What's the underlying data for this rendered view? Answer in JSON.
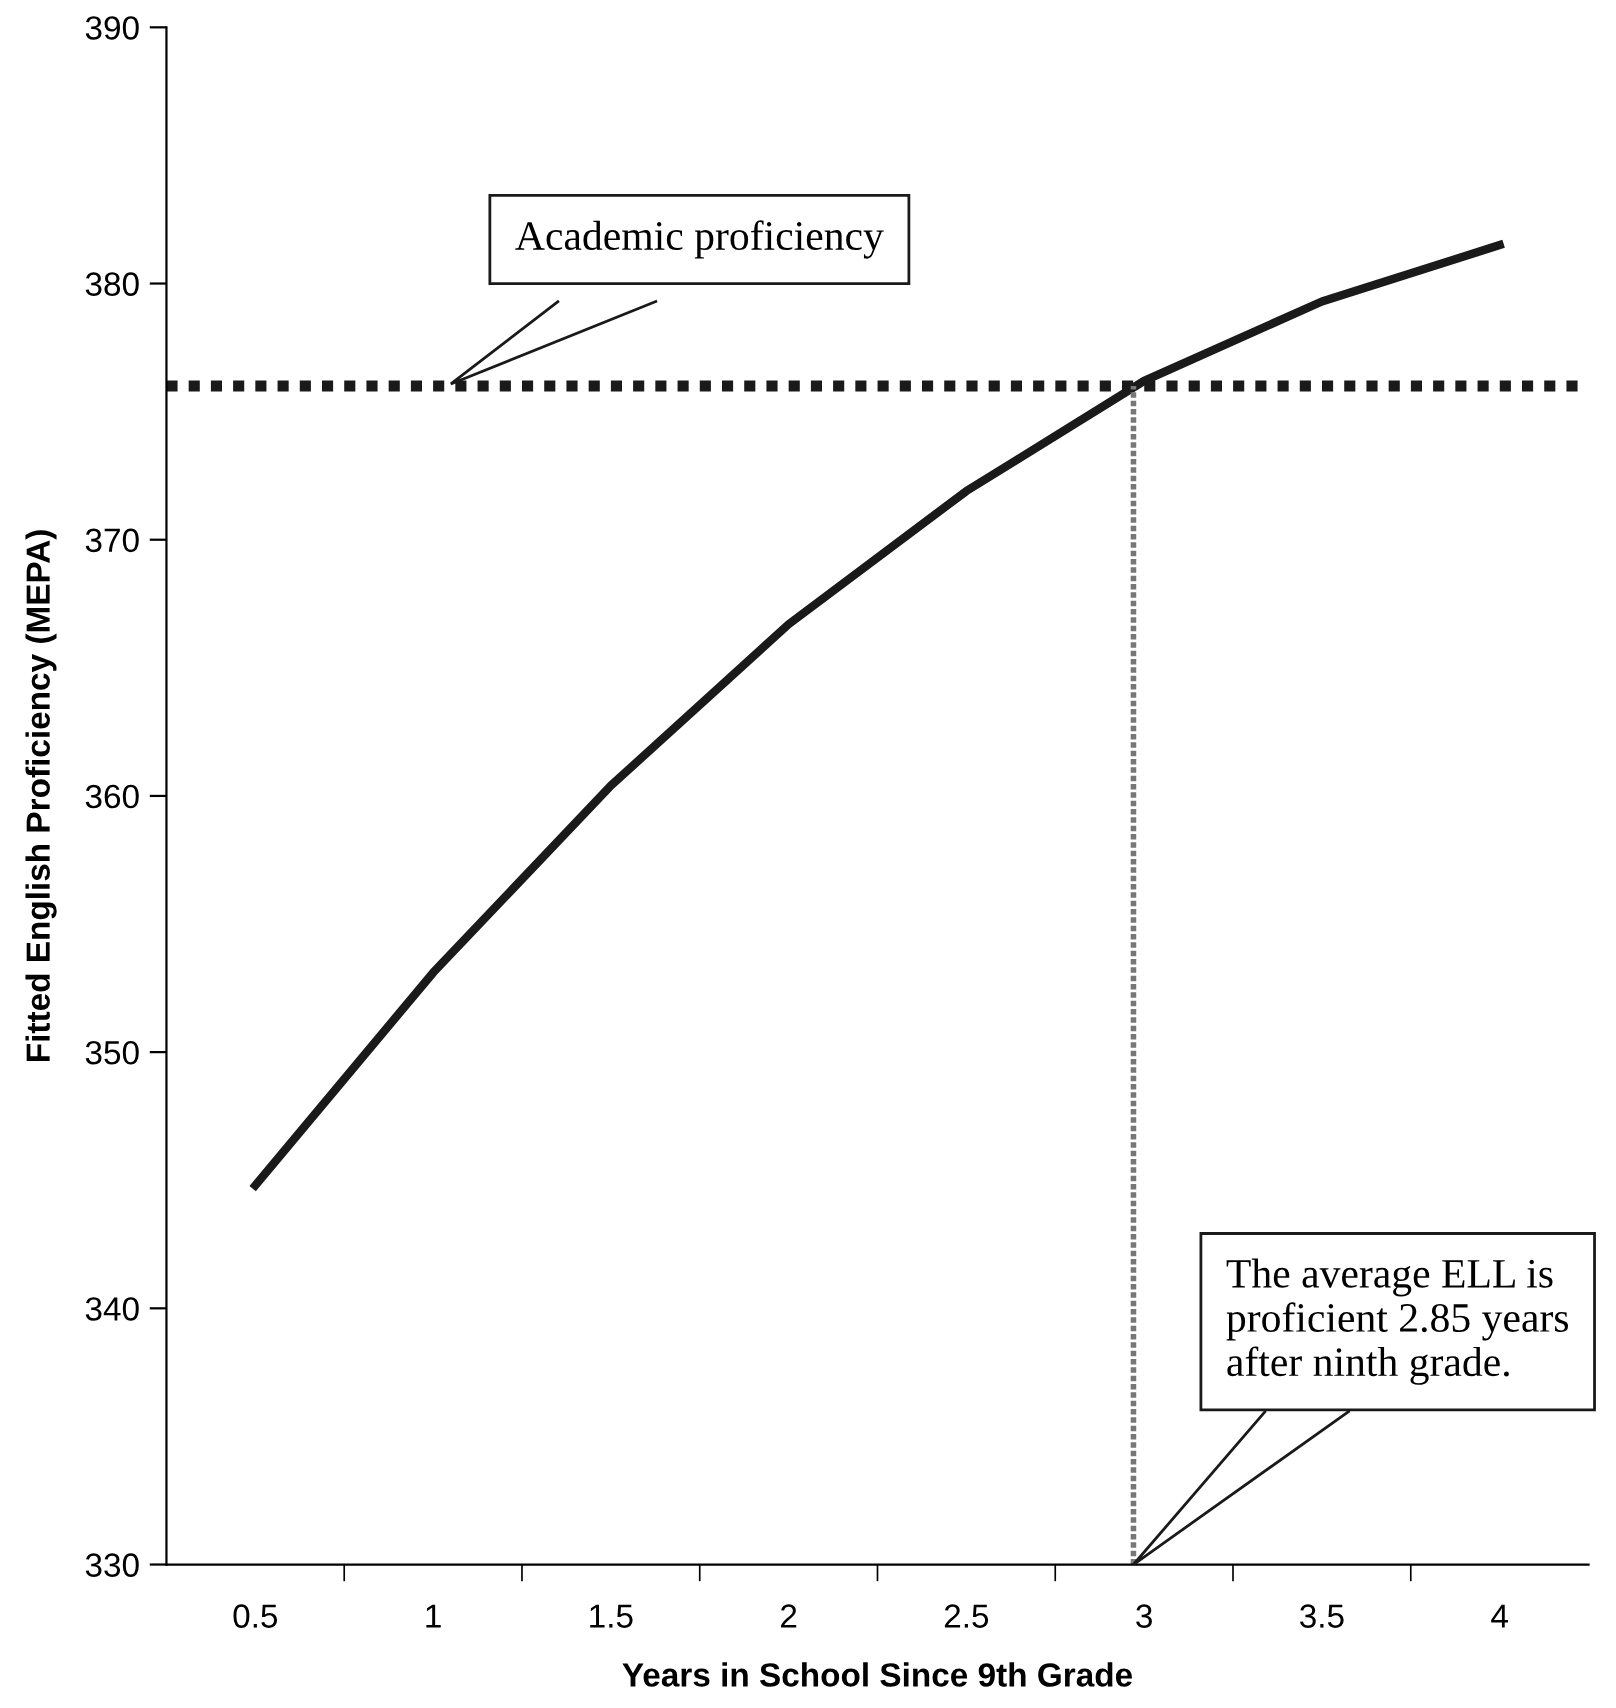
{
  "chart_data": {
    "type": "line",
    "xlabel": "Years in School Since 9th Grade",
    "ylabel": "Fitted English Proficiency (MEPA)",
    "x": [
      0.5,
      1,
      1.5,
      2,
      2.5,
      3,
      3.5,
      4
    ],
    "series": [
      {
        "color": "#1a1a1a",
        "values": [
          344.8,
          353.1,
          360.4,
          366.7,
          371.9,
          376.2,
          379.3,
          381.5
        ]
      }
    ],
    "xlim": [
      0.25,
      4.25
    ],
    "xticks": [
      0.5,
      1,
      1.5,
      2,
      2.5,
      3,
      3.5,
      4
    ],
    "ylim": [
      330,
      390
    ],
    "yticks": [
      330,
      340,
      350,
      360,
      370,
      380,
      390
    ],
    "ref_lines": [
      {
        "axis": "y",
        "value": 376,
        "color": "#1a1a1a",
        "line_style": "dotted"
      },
      {
        "axis": "x",
        "value": 2.97,
        "color": "#777777",
        "line_style": "dotted"
      }
    ],
    "annotations": [
      "Academic proficiency",
      "The average ELL is\nproficient 2.85 years\nafter ninth grade."
    ],
    "grid": false,
    "marker": "none",
    "line_style": "solid"
  }
}
